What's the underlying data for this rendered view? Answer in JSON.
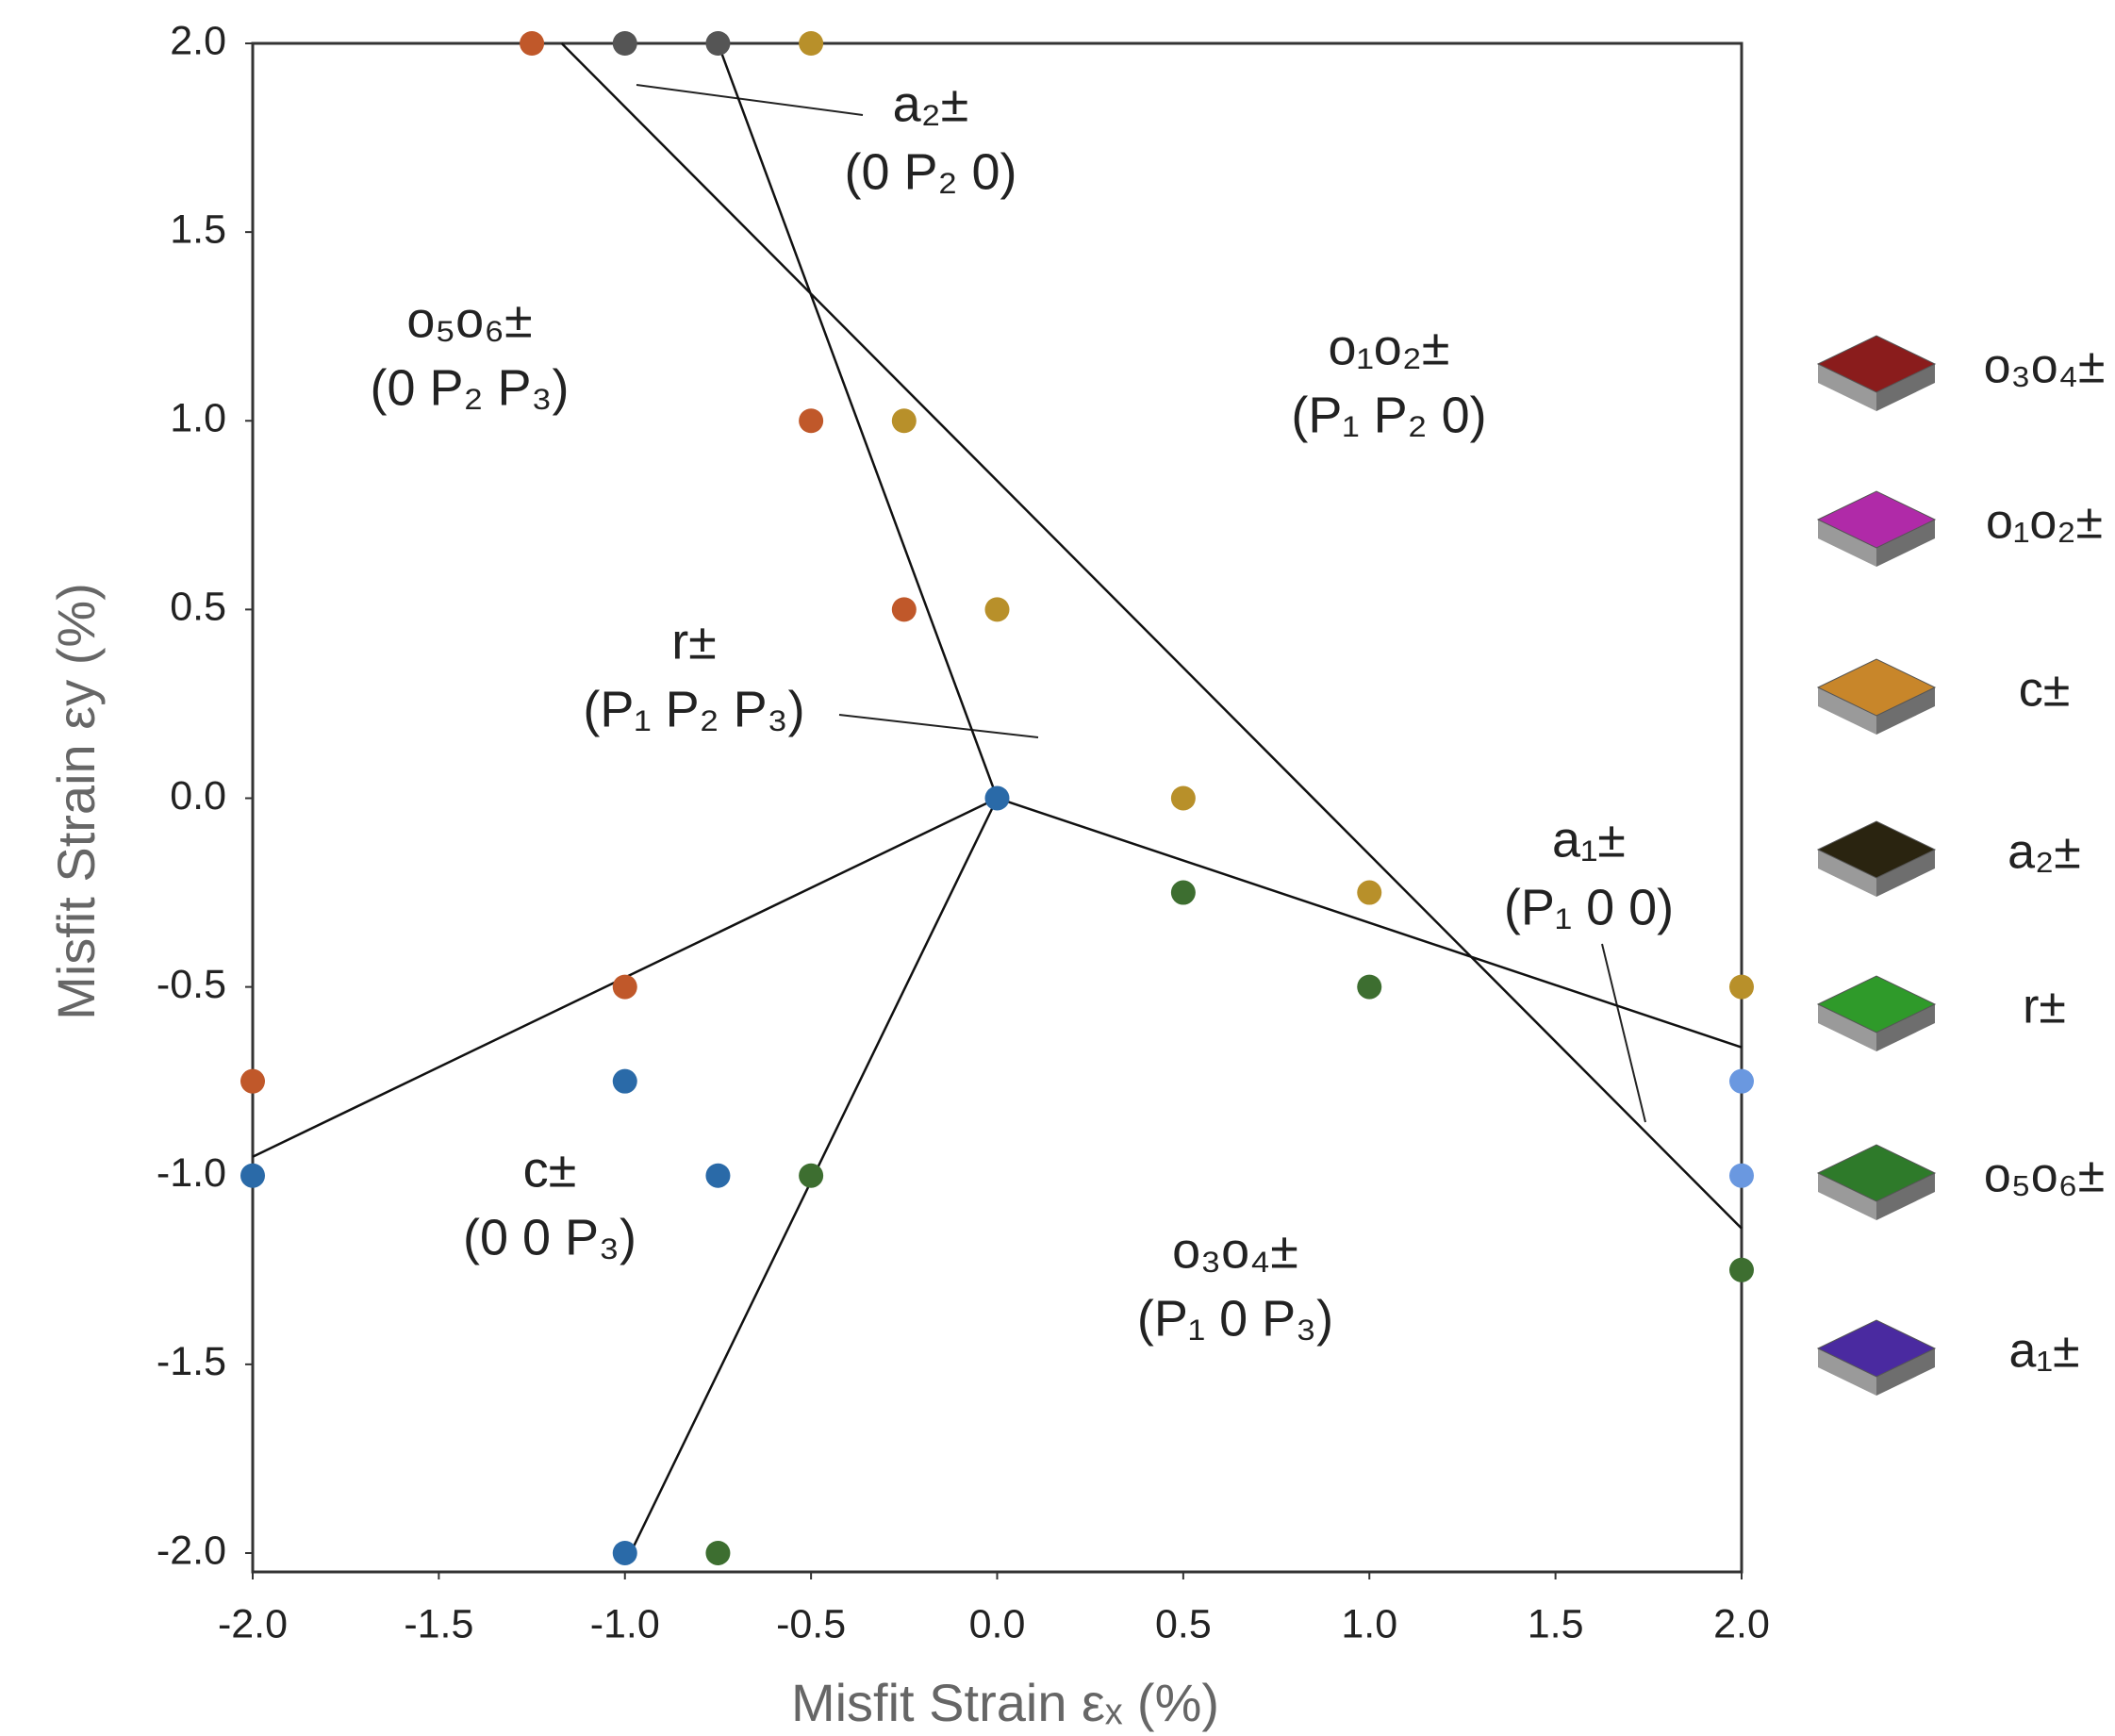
{
  "chart_data": {
    "type": "scatter",
    "xlabel": "Misfit Strain εₓ (%)",
    "ylabel": "Misfit Strain εy (%)",
    "xlim": [
      -2,
      2
    ],
    "ylim": [
      -2.05,
      2
    ],
    "xticks": [
      {
        "value": -2,
        "label": "-2.0"
      },
      -1.5,
      {
        "value": -1,
        "label": "-1.0"
      },
      -0.5,
      {
        "value": 0,
        "label": "0.0"
      },
      0.5,
      {
        "value": 1,
        "label": "1.0"
      },
      1.5,
      {
        "value": 2,
        "label": "2.0"
      }
    ],
    "yticks": [
      {
        "value": 2,
        "label": "2.0"
      },
      1.5,
      {
        "value": 1,
        "label": "1.0"
      },
      0.5,
      {
        "value": 0,
        "label": "0.0"
      },
      -0.5,
      {
        "value": -1,
        "label": "-1.0"
      },
      -1.5,
      {
        "value": -2,
        "label": "-2.0"
      }
    ],
    "series": [
      {
        "color": "#c0582a",
        "x": [
          -1.25,
          -0.5,
          -0.25,
          -1,
          -2
        ],
        "y": [
          2,
          1,
          0.5,
          -0.5,
          -0.75
        ]
      },
      {
        "color": "#555555",
        "x": [
          -1,
          -0.75
        ],
        "y": [
          2,
          2
        ]
      },
      {
        "color": "#b8902a",
        "x": [
          -0.5,
          -0.25,
          0,
          0.5,
          1,
          2
        ],
        "y": [
          2,
          1,
          0.5,
          0,
          -0.25,
          -0.5
        ]
      },
      {
        "color": "#2a6aa8",
        "x": [
          0,
          -1,
          -0.75,
          -2,
          -1
        ],
        "y": [
          0,
          -0.75,
          -1,
          -1,
          -2
        ]
      },
      {
        "color": "#3d6e30",
        "x": [
          0.5,
          1,
          -0.5,
          2,
          -0.75
        ],
        "y": [
          -0.25,
          -0.5,
          -1,
          -1.25,
          -2
        ]
      },
      {
        "color": "#6a98e0",
        "x": [
          2,
          2
        ],
        "y": [
          -0.75,
          -1
        ]
      }
    ],
    "boundaries": [
      {
        "x": [
          -1.17,
          2
        ],
        "y": [
          2,
          -1.14
        ]
      },
      {
        "x": [
          -0.75,
          0
        ],
        "y": [
          2,
          0
        ]
      },
      {
        "x": [
          0,
          -2
        ],
        "y": [
          0,
          -0.95
        ]
      },
      {
        "x": [
          0,
          2
        ],
        "y": [
          0,
          -0.66
        ]
      },
      {
        "x": [
          0,
          -1
        ],
        "y": [
          0,
          -2.03
        ]
      }
    ],
    "annotations": [
      {
        "lines": [
          "a₂±",
          "(0 P₂ 0)"
        ]
      },
      {
        "lines": [
          "o₅o₆±",
          "(0 P₂ P₃)"
        ]
      },
      {
        "lines": [
          "o₁o₂±",
          "(P₁ P₂ 0)"
        ]
      },
      {
        "lines": [
          "r±",
          "(P₁ P₂ P₃)"
        ]
      },
      {
        "lines": [
          "a₁±",
          "(P₁ 0 0)"
        ]
      },
      {
        "lines": [
          "c±",
          "(0 0 P₃)"
        ]
      },
      {
        "lines": [
          "o₃o₄±",
          "(P₁ 0 P₃)"
        ]
      }
    ],
    "legend": [
      {
        "label": "o₃o₄±",
        "color": "#8a1c1c"
      },
      {
        "label": "o₁o₂±",
        "color": "#b02aa8"
      },
      {
        "label": "c±",
        "color": "#c8862a"
      },
      {
        "label": "a₂±",
        "color": "#2a2410"
      },
      {
        "label": "r±",
        "color": "#2f9a2a"
      },
      {
        "label": "o₅o₆±",
        "color": "#2e7a2a"
      },
      {
        "label": "a₁±",
        "color": "#4a2aa0"
      }
    ]
  }
}
